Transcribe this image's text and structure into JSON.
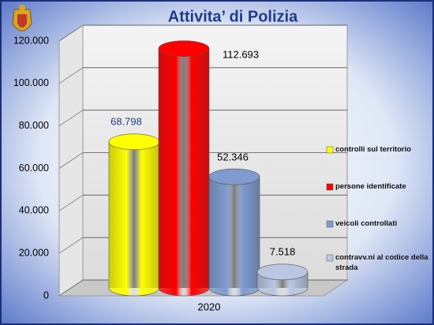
{
  "chart_data": {
    "type": "cylinder-bar",
    "title": "Attivita’ di Polizia",
    "categories": [
      "2020"
    ],
    "series": [
      {
        "name": "controlli sul territorio",
        "color": "#ffff00",
        "values": [
          68798
        ],
        "value_labels": [
          "68.798"
        ]
      },
      {
        "name": "persone identificate",
        "color": "#ff0000",
        "values": [
          112693
        ],
        "value_labels": [
          "112.693"
        ]
      },
      {
        "name": "veicoli controllati",
        "color": "#7f9bd0",
        "values": [
          52346
        ],
        "value_labels": [
          "52.346"
        ]
      },
      {
        "name": "contravv.ni al codice della strada",
        "color": "#b9c7e3",
        "values": [
          7518
        ],
        "value_labels": [
          "7.518"
        ]
      }
    ],
    "ylim": [
      0,
      120000
    ],
    "yticks": [
      0,
      {
        "value": 20000,
        "label": "20.000"
      },
      {
        "value": 40000,
        "label": "40.000"
      },
      {
        "value": 60000,
        "label": "60.000"
      },
      {
        "value": 80000,
        "label": "80.000"
      },
      {
        "value": 100000,
        "label": "100.000"
      },
      {
        "value": 120000,
        "label": "120.000"
      }
    ],
    "grid": true,
    "legend": "right"
  }
}
